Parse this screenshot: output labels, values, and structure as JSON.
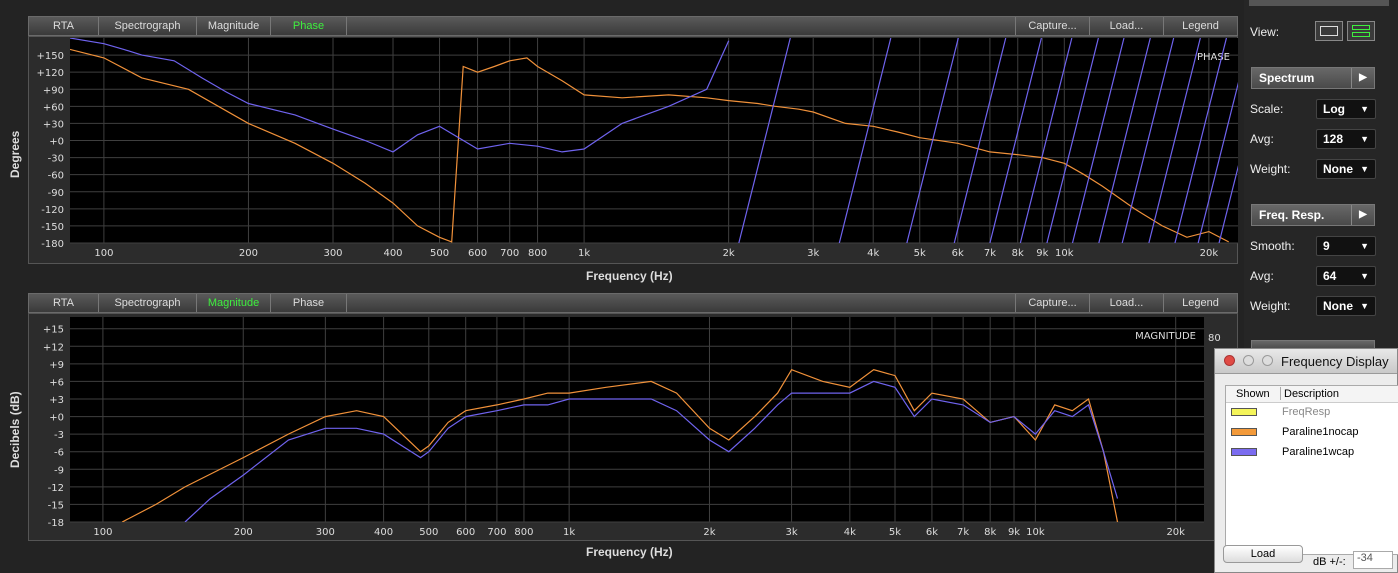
{
  "top_panel": {
    "tabs": [
      "RTA",
      "Spectrograph",
      "Magnitude",
      "Phase"
    ],
    "active_tab": "Phase",
    "right_buttons": [
      "Capture...",
      "Load...",
      "Legend"
    ],
    "y_title": "Degrees",
    "x_title": "Frequency (Hz)",
    "corner_label": "PHASE",
    "y_ticks": [
      "+150",
      "+120",
      "+90",
      "+60",
      "+30",
      "+0",
      "-30",
      "-60",
      "-90",
      "-120",
      "-150",
      "-180"
    ],
    "x_ticks": [
      "100",
      "200",
      "300",
      "400",
      "500",
      "600",
      "700",
      "800",
      "1k",
      "2k",
      "3k",
      "4k",
      "5k",
      "6k",
      "7k",
      "8k",
      "9k",
      "10k",
      "20k"
    ]
  },
  "bottom_panel": {
    "tabs": [
      "RTA",
      "Spectrograph",
      "Magnitude",
      "Phase"
    ],
    "active_tab": "Magnitude",
    "right_buttons": [
      "Capture...",
      "Load...",
      "Legend"
    ],
    "y_title": "Decibels (dB)",
    "x_title": "Frequency (Hz)",
    "corner_label": "MAGNITUDE",
    "right_axis_ticks": [
      "80"
    ],
    "y_ticks": [
      "+15",
      "+12",
      "+9",
      "+6",
      "+3",
      "+0",
      "-3",
      "-6",
      "-9",
      "-12",
      "-15",
      "-18"
    ],
    "x_ticks": [
      "100",
      "200",
      "300",
      "400",
      "500",
      "600",
      "700",
      "800",
      "1k",
      "2k",
      "3k",
      "4k",
      "5k",
      "6k",
      "7k",
      "8k",
      "9k",
      "10k",
      "20k"
    ]
  },
  "sidebar": {
    "view_label": "View:",
    "spectrum_section": "Spectrum",
    "scale_label": "Scale:",
    "scale_value": "Log",
    "avg_label": "Avg:",
    "avg_value": "128",
    "weight_label": "Weight:",
    "weight_value": "None",
    "freq_section": "Freq. Resp.",
    "smooth_label": "Smooth:",
    "smooth_value": "9",
    "avg2_label": "Avg:",
    "avg2_value": "64",
    "weight2_label": "Weight:",
    "weight2_value": "None"
  },
  "legend_window": {
    "title": "Frequency Display",
    "col_shown": "Shown",
    "col_description": "Description",
    "rows": [
      {
        "name": "FreqResp",
        "color": "#f4f45a",
        "dimmed": true
      },
      {
        "name": "Paraline1nocap",
        "color": "#f39a3a",
        "dimmed": false
      },
      {
        "name": "Paraline1wcap",
        "color": "#7b6cf0",
        "dimmed": false
      }
    ],
    "load_button": "Load",
    "db_label": "dB +/-:",
    "db_value": "-34"
  },
  "colors": {
    "orange": "#f0913a",
    "blue": "#6f63ee",
    "active_tab": "#3ef03e"
  },
  "chart_data": [
    {
      "type": "line",
      "title": "",
      "xlabel": "Frequency (Hz)",
      "ylabel": "Degrees",
      "xscale": "log",
      "xlim": [
        85,
        23000
      ],
      "ylim": [
        -180,
        180
      ],
      "series": [
        {
          "name": "Paraline1nocap",
          "color": "#f0913a",
          "x": [
            85,
            100,
            120,
            150,
            200,
            250,
            300,
            350,
            400,
            450,
            500,
            530,
            560,
            600,
            650,
            700,
            760,
            800,
            900,
            1000,
            1200,
            1500,
            1800,
            2000,
            2300,
            2500,
            2800,
            3000,
            3500,
            4000,
            4500,
            5000,
            6000,
            7000,
            8000,
            9000,
            10000,
            11000,
            12000,
            14000,
            16000,
            18000,
            20000,
            22000
          ],
          "y": [
            160,
            145,
            110,
            90,
            30,
            -5,
            -40,
            -75,
            -110,
            -150,
            -170,
            -178,
            130,
            120,
            130,
            140,
            145,
            130,
            105,
            80,
            75,
            80,
            75,
            70,
            65,
            60,
            55,
            50,
            30,
            25,
            15,
            5,
            -5,
            -20,
            -25,
            -30,
            -40,
            -60,
            -80,
            -120,
            -150,
            -170,
            -160,
            -178
          ]
        },
        {
          "name": "Paraline1wcap",
          "color": "#6f63ee",
          "x": [
            85,
            100,
            110,
            120,
            140,
            160,
            180,
            200,
            250,
            300,
            350,
            400,
            450,
            500,
            600,
            700,
            800,
            900,
            1000,
            1200,
            1500,
            1800,
            2000
          ],
          "y": [
            180,
            170,
            160,
            150,
            140,
            110,
            85,
            65,
            45,
            20,
            0,
            -20,
            10,
            25,
            -15,
            -5,
            -10,
            -20,
            -15,
            30,
            60,
            90,
            175
          ]
        }
      ]
    },
    {
      "type": "line",
      "title": "",
      "xlabel": "Frequency (Hz)",
      "ylabel": "Decibels (dB)",
      "xscale": "log",
      "xlim": [
        85,
        23000
      ],
      "ylim": [
        -18,
        17
      ],
      "series": [
        {
          "name": "Paraline1nocap",
          "color": "#f0913a",
          "x": [
            110,
            130,
            150,
            200,
            250,
            300,
            350,
            400,
            480,
            500,
            550,
            600,
            700,
            800,
            900,
            1000,
            1200,
            1500,
            1700,
            2000,
            2200,
            2500,
            2800,
            3000,
            3500,
            4000,
            4500,
            5000,
            5500,
            6000,
            7000,
            8000,
            9000,
            10000,
            11000,
            12000,
            13000,
            14000,
            15000
          ],
          "y": [
            -18,
            -15,
            -12,
            -7,
            -3,
            0,
            1,
            0,
            -6,
            -5,
            -1,
            1,
            2,
            3,
            4,
            4,
            5,
            6,
            4,
            -2,
            -4,
            0,
            4,
            8,
            6,
            5,
            8,
            7,
            1,
            4,
            3,
            -1,
            0,
            -4,
            2,
            1,
            3,
            -6,
            -18
          ]
        },
        {
          "name": "Paraline1wcap",
          "color": "#6f63ee",
          "x": [
            150,
            170,
            200,
            250,
            300,
            350,
            400,
            480,
            500,
            550,
            600,
            700,
            800,
            900,
            1000,
            1200,
            1500,
            1700,
            2000,
            2200,
            2500,
            2800,
            3000,
            3500,
            4000,
            4500,
            5000,
            5500,
            6000,
            7000,
            8000,
            9000,
            10000,
            11000,
            12000,
            13000,
            14000,
            15000
          ],
          "y": [
            -18,
            -14,
            -10,
            -4,
            -2,
            -2,
            -3,
            -7,
            -6,
            -2,
            0,
            1,
            2,
            2,
            3,
            3,
            3,
            1,
            -4,
            -6,
            -2,
            2,
            4,
            4,
            4,
            6,
            5,
            0,
            3,
            2,
            -1,
            0,
            -3,
            1,
            0,
            2,
            -6,
            -14
          ]
        }
      ]
    }
  ]
}
